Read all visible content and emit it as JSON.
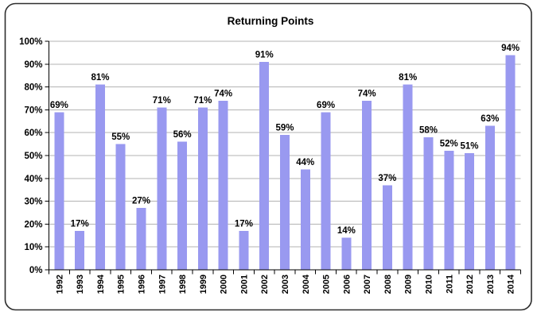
{
  "chart_data": {
    "type": "bar",
    "title": "Returning Points",
    "categories": [
      "1992",
      "1993",
      "1994",
      "1995",
      "1996",
      "1997",
      "1998",
      "1999",
      "2000",
      "2001",
      "2002",
      "2003",
      "2004",
      "2005",
      "2006",
      "2007",
      "2008",
      "2009",
      "2010",
      "2011",
      "2012",
      "2013",
      "2014"
    ],
    "values": [
      69,
      17,
      81,
      55,
      27,
      71,
      56,
      71,
      74,
      17,
      91,
      59,
      44,
      69,
      14,
      74,
      37,
      81,
      58,
      52,
      51,
      63,
      94
    ],
    "data_labels": [
      "69%",
      "17%",
      "81%",
      "55%",
      "27%",
      "71%",
      "56%",
      "71%",
      "74%",
      "17%",
      "91%",
      "59%",
      "44%",
      "69%",
      "14%",
      "74%",
      "37%",
      "81%",
      "58%",
      "52%",
      "51%",
      "63%",
      "94%"
    ],
    "xlabel": "",
    "ylabel": "",
    "ylim": [
      0,
      100
    ],
    "yticks": [
      0,
      10,
      20,
      30,
      40,
      50,
      60,
      70,
      80,
      90,
      100
    ],
    "ytick_labels": [
      "0%",
      "10%",
      "20%",
      "30%",
      "40%",
      "50%",
      "60%",
      "70%",
      "80%",
      "90%",
      "100%"
    ],
    "grid": true,
    "legend_position": "none",
    "colors": {
      "bar": "#9999F0",
      "gridline": "#B3B3B3",
      "axis": "#000000",
      "text": "#000000",
      "frame_border": "#2E2E2E",
      "background": "#FFFFFF"
    }
  }
}
